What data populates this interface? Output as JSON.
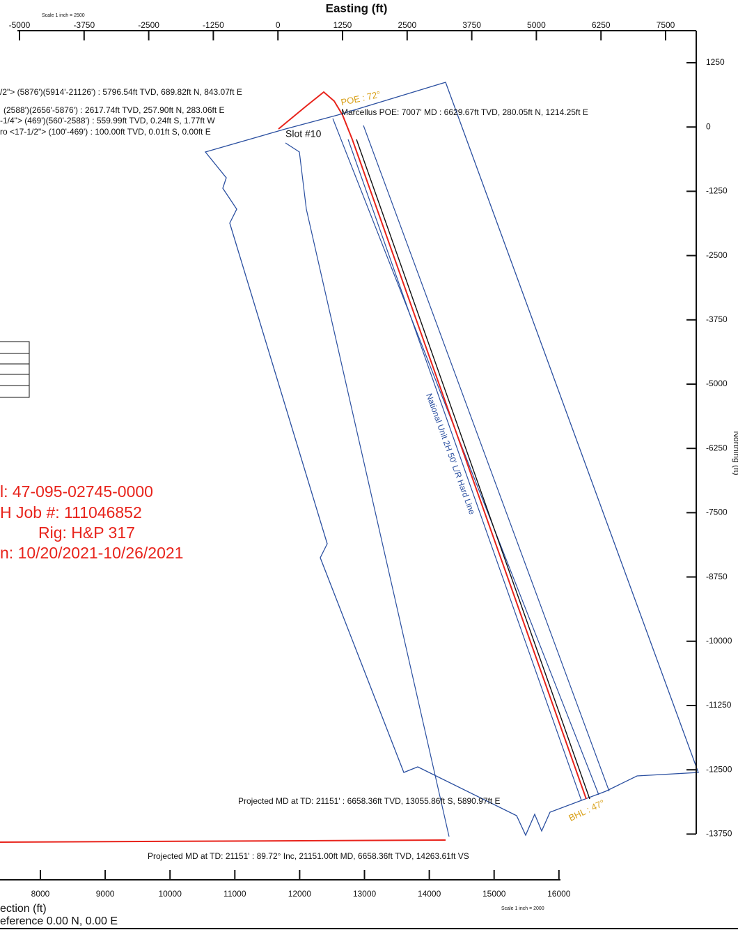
{
  "header": {
    "scale_top": "Scale 1 inch = 2500",
    "axis_title_top": "Easting (ft)",
    "axis_title_right": "Northing (ft)",
    "top_ticks": [
      "-5000",
      "-3750",
      "-2500",
      "-1250",
      "0",
      "1250",
      "2500",
      "3750",
      "5000",
      "6250",
      "7500"
    ]
  },
  "right_ticks": [
    "1250",
    "0",
    "-1250",
    "-2500",
    "-3750",
    "-5000",
    "-6250",
    "-7500",
    "-8750",
    "-10000",
    "-11250",
    "-12500",
    "-13750"
  ],
  "bottom_ticks": [
    "8000",
    "9000",
    "10000",
    "11000",
    "12000",
    "13000",
    "14000",
    "15000",
    "16000"
  ],
  "annotations": {
    "casing_1": "/2\"> (5876')(5914'-21126') : 5796.54ft TVD, 689.82ft N, 843.07ft E",
    "casing_2": "(2588')(2656'-5876') : 2617.74ft TVD, 257.90ft N, 283.06ft E",
    "casing_3": "-1/4\"> (469')(560'-2588') : 559.99ft TVD, 0.24ft S, 1.77ft W",
    "casing_4": "ro <17-1/2\"> (100'-469') : 100.00ft TVD, 0.01ft S, 0.00ft E",
    "slot": "Slot #10",
    "poe_angle": "POE : 72°",
    "poe": "Marcellus POE: 7007' MD : 6629.67ft TVD, 280.05ft N, 1214.25ft E",
    "hard_line": "National Unit 2H 50' L/R Hard Line",
    "projected_plan": "Projected MD at TD: 21151' : 6658.36ft TVD, 13055.86ft S, 5890.97ft E",
    "bhl_angle": "BHL : 47°",
    "projected_section": "Projected MD at TD: 21151' : 89.72° Inc, 21151.00ft MD, 6658.36ft TVD, 14263.61ft VS"
  },
  "info": [
    "l: 47-095-02745-0000",
    "H Job #: 111046852",
    "Rig: H&P 317",
    "n: 10/20/2021-10/26/2021"
  ],
  "footer": {
    "section_title": "ection (ft)",
    "reference": "eference 0.00 N, 0.00 E",
    "scale_bottom": "Scale 1 inch = 2000"
  }
}
